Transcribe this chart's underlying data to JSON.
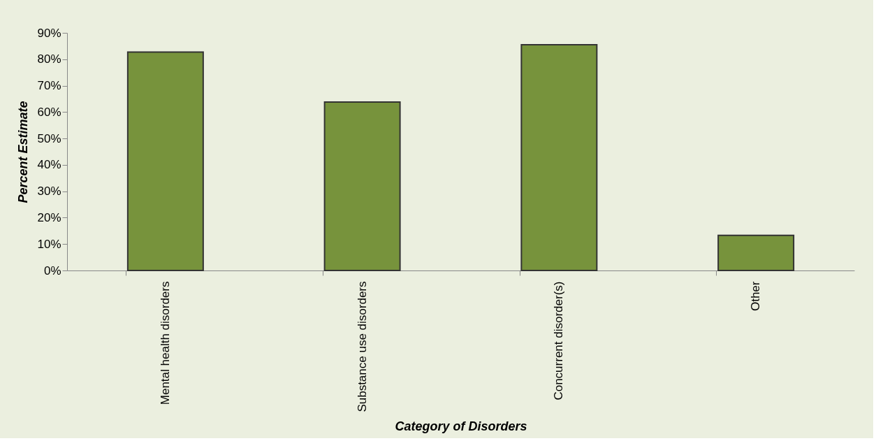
{
  "chart_data": {
    "type": "bar",
    "xlabel": "Category of Disorders",
    "ylabel": "Percent Estimate",
    "categories": [
      "Mental health disorders",
      "Substance use disorders",
      "Concurrent disorder(s)",
      "Other"
    ],
    "values": [
      82.7,
      63.8,
      85.5,
      13.3
    ],
    "color": "#77933c",
    "ylim": [
      0,
      90
    ],
    "yticks": [
      {
        "value": 0,
        "label": "0%"
      },
      {
        "value": 10,
        "label": "10%"
      },
      {
        "value": 20,
        "label": "20%"
      },
      {
        "value": 30,
        "label": "30%"
      },
      {
        "value": 40,
        "label": "40%"
      },
      {
        "value": 50,
        "label": "50%"
      },
      {
        "value": 60,
        "label": "60%"
      },
      {
        "value": 70,
        "label": "70%"
      },
      {
        "value": 80,
        "label": "80%"
      },
      {
        "value": 90,
        "label": "90%"
      }
    ],
    "grid": false,
    "legend": false
  }
}
